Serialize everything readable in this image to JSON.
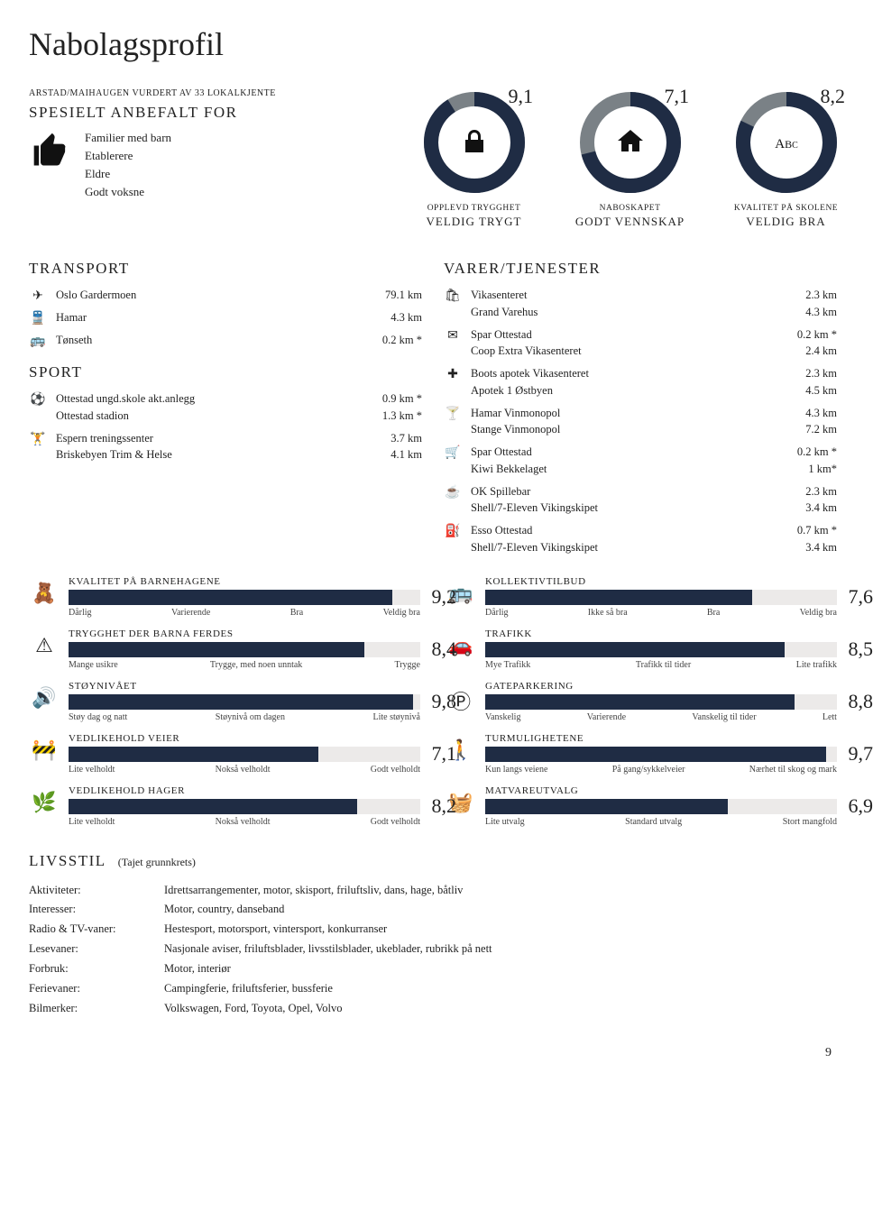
{
  "title": "Nabolagsprofil",
  "pageNumber": "9",
  "colors": {
    "dark": "#1f2c44",
    "grey": "#7a8186",
    "track": "#eceae9"
  },
  "recommended": {
    "caption": "ARSTAD/MAIHAUGEN VURDERT AV 33 LOKALKJENTE",
    "heading": "SPESIELT ANBEFALT FOR",
    "items": [
      "Familier med barn",
      "Etablerere",
      "Eldre",
      "Godt voksne"
    ]
  },
  "donuts": [
    {
      "score": "9,1",
      "topLabel": "OPPLEVD TRYGGHET",
      "bottomLabel": "VELDIG TRYGT",
      "icon": "lock",
      "pct": 91
    },
    {
      "score": "7,1",
      "topLabel": "NABOSKAPET",
      "bottomLabel": "GODT VENNSKAP",
      "icon": "house",
      "pct": 71
    },
    {
      "score": "8,2",
      "topLabel": "KVALITET PÅ SKOLENE",
      "bottomLabel": "VELDIG BRA",
      "icon": "abc",
      "pct": 82
    }
  ],
  "transport": {
    "heading": "TRANSPORT",
    "groups": [
      {
        "icon": "✈",
        "rows": [
          {
            "name": "Oslo Gardermoen",
            "dist": "79.1 km"
          }
        ]
      },
      {
        "icon": "🚆",
        "rows": [
          {
            "name": "Hamar",
            "dist": "4.3 km"
          }
        ]
      },
      {
        "icon": "🚌",
        "rows": [
          {
            "name": "Tønseth",
            "dist": "0.2 km *"
          }
        ]
      }
    ]
  },
  "sport": {
    "heading": "SPORT",
    "groups": [
      {
        "icon": "⚽",
        "rows": [
          {
            "name": "Ottestad ungd.skole akt.anlegg",
            "dist": "0.9 km *"
          },
          {
            "name": "Ottestad stadion",
            "dist": "1.3 km *"
          }
        ]
      },
      {
        "icon": "🏋",
        "rows": [
          {
            "name": "Espern treningssenter",
            "dist": "3.7 km"
          },
          {
            "name": "Briskebyen Trim & Helse",
            "dist": "4.1 km"
          }
        ]
      }
    ]
  },
  "services": {
    "heading": "VARER/TJENESTER",
    "groups": [
      {
        "icon": "🛍",
        "rows": [
          {
            "name": "Vikasenteret",
            "dist": "2.3 km"
          },
          {
            "name": "Grand Varehus",
            "dist": "4.3 km"
          }
        ]
      },
      {
        "icon": "✉",
        "rows": [
          {
            "name": "Spar Ottestad",
            "dist": "0.2 km *"
          },
          {
            "name": "Coop Extra Vikasenteret",
            "dist": "2.4 km"
          }
        ]
      },
      {
        "icon": "✚",
        "rows": [
          {
            "name": "Boots apotek Vikasenteret",
            "dist": "2.3 km"
          },
          {
            "name": "Apotek 1 Østbyen",
            "dist": "4.5 km"
          }
        ]
      },
      {
        "icon": "🍸",
        "rows": [
          {
            "name": "Hamar Vinmonopol",
            "dist": "4.3 km"
          },
          {
            "name": "Stange Vinmonopol",
            "dist": "7.2 km"
          }
        ]
      },
      {
        "icon": "🛒",
        "rows": [
          {
            "name": "Spar Ottestad",
            "dist": "0.2 km *"
          },
          {
            "name": "Kiwi Bekkelaget",
            "dist": "1 km*"
          }
        ]
      },
      {
        "icon": "☕",
        "rows": [
          {
            "name": "OK Spillebar",
            "dist": "2.3 km"
          },
          {
            "name": "Shell/7-Eleven Vikingskipet",
            "dist": "3.4 km"
          }
        ]
      },
      {
        "icon": "⛽",
        "rows": [
          {
            "name": "Esso Ottestad",
            "dist": "0.7 km *"
          },
          {
            "name": "Shell/7-Eleven Vikingskipet",
            "dist": "3.4 km"
          }
        ]
      }
    ]
  },
  "barsLeft": [
    {
      "icon": "🧸",
      "title": "KVALITET PÅ BARNEHAGENE",
      "score": "9,2",
      "pct": 92,
      "labels": [
        "Dårlig",
        "Varierende",
        "Bra",
        "Veldig bra"
      ]
    },
    {
      "icon": "⚠",
      "title": "TRYGGHET DER BARNA FERDES",
      "score": "8,4",
      "pct": 84,
      "labels": [
        "Mange usikre",
        "Trygge, med noen unntak",
        "Trygge"
      ]
    },
    {
      "icon": "🔊",
      "title": "STØYNIVÅET",
      "score": "9,8",
      "pct": 98,
      "labels": [
        "Støy dag og natt",
        "Støynivå om dagen",
        "Lite støynivå"
      ]
    },
    {
      "icon": "🚧",
      "title": "VEDLIKEHOLD VEIER",
      "score": "7,1",
      "pct": 71,
      "labels": [
        "Lite velholdt",
        "Nokså velholdt",
        "Godt velholdt"
      ]
    },
    {
      "icon": "🌿",
      "title": "VEDLIKEHOLD HAGER",
      "score": "8,2",
      "pct": 82,
      "labels": [
        "Lite velholdt",
        "Nokså velholdt",
        "Godt velholdt"
      ]
    }
  ],
  "barsRight": [
    {
      "icon": "🚌",
      "title": "KOLLEKTIVTILBUD",
      "score": "7,6",
      "pct": 76,
      "labels": [
        "Dårlig",
        "Ikke så bra",
        "Bra",
        "Veldig bra"
      ]
    },
    {
      "icon": "🚗",
      "title": "TRAFIKK",
      "score": "8,5",
      "pct": 85,
      "labels": [
        "Mye Trafikk",
        "Trafikk til tider",
        "Lite trafikk"
      ]
    },
    {
      "icon": "Ⓟ",
      "title": "GATEPARKERING",
      "score": "8,8",
      "pct": 88,
      "labels": [
        "Vanskelig",
        "Varierende",
        "Vanskelig til tider",
        "Lett"
      ]
    },
    {
      "icon": "🚶",
      "title": "TURMULIGHETENE",
      "score": "9,7",
      "pct": 97,
      "labels": [
        "Kun langs veiene",
        "På gang/sykkelveier",
        "Nærhet til skog og mark"
      ]
    },
    {
      "icon": "🧺",
      "title": "MATVAREUTVALG",
      "score": "6,9",
      "pct": 69,
      "labels": [
        "Lite utvalg",
        "Standard utvalg",
        "Stort mangfold"
      ]
    }
  ],
  "livsstil": {
    "heading": "LIVSSTIL",
    "sub": "(Tajet grunnkrets)",
    "rows": [
      {
        "label": "Aktiviteter:",
        "value": "Idrettsarrangementer, motor, skisport, friluftsliv, dans, hage, båtliv"
      },
      {
        "label": "Interesser:",
        "value": "Motor, country, danseband"
      },
      {
        "label": "Radio & TV-vaner:",
        "value": "Hestesport, motorsport, vintersport, konkurranser"
      },
      {
        "label": "Lesevaner:",
        "value": "Nasjonale aviser, friluftsblader, livsstilsblader, ukeblader, rubrikk på nett"
      },
      {
        "label": "Forbruk:",
        "value": "Motor, interiør"
      },
      {
        "label": "Ferievaner:",
        "value": "Campingferie, friluftsferier, bussferie"
      },
      {
        "label": "Bilmerker:",
        "value": "Volkswagen, Ford, Toyota, Opel, Volvo"
      }
    ]
  }
}
